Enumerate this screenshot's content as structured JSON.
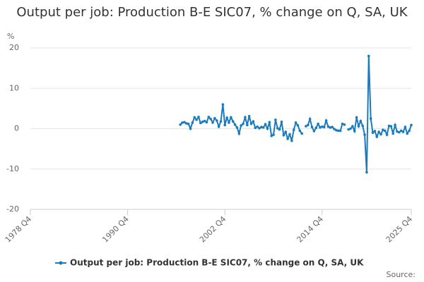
{
  "chart_data": {
    "type": "line",
    "title": "Output per job: Production B-E SIC07, % change on Q, SA, UK",
    "y_label": "%",
    "source": "Source:",
    "categories": [
      "1978 Q4",
      null,
      null,
      null,
      null,
      null,
      null,
      null,
      null,
      null,
      null,
      null,
      null,
      null,
      null,
      null,
      null,
      null,
      null,
      null,
      null,
      null,
      null,
      null,
      null,
      null,
      null,
      null,
      null,
      null,
      null,
      null,
      null,
      null,
      null,
      null,
      null,
      null,
      null,
      null,
      null,
      null,
      null,
      null,
      null,
      null,
      null,
      null,
      "1990 Q4",
      null,
      null,
      null,
      null,
      null,
      null,
      null,
      null,
      null,
      null,
      null,
      null,
      null,
      null,
      null,
      null,
      null,
      null,
      null,
      null,
      null,
      null,
      null,
      null,
      null,
      null,
      null,
      null,
      null,
      null,
      null,
      null,
      null,
      null,
      null,
      null,
      null,
      null,
      null,
      null,
      null,
      null,
      null,
      null,
      null,
      null,
      null,
      "2002 Q4",
      null,
      null,
      null,
      null,
      null,
      null,
      null,
      null,
      null,
      null,
      null,
      null,
      null,
      null,
      null,
      null,
      null,
      null,
      null,
      null,
      null,
      null,
      null,
      null,
      null,
      null,
      null,
      null,
      null,
      null,
      null,
      null,
      null,
      null,
      null,
      null,
      null,
      null,
      null,
      null,
      null,
      null,
      null,
      null,
      null,
      null,
      null,
      "2014 Q4",
      null,
      null,
      null,
      null,
      null,
      null,
      null,
      null,
      null,
      null,
      null,
      null,
      null,
      null,
      null,
      null,
      null,
      null,
      null,
      null,
      null,
      null,
      null,
      null,
      null,
      null,
      null,
      null,
      null,
      null,
      null,
      null,
      null,
      null,
      null,
      null,
      null,
      null,
      null,
      null,
      null,
      null,
      null,
      "2025 Q4"
    ],
    "series": [
      {
        "name": "Output per job: Production B-E SIC07, % change on Q, SA, UK",
        "color": "#1b7bbd",
        "values": [
          null,
          null,
          null,
          null,
          null,
          null,
          null,
          null,
          null,
          null,
          null,
          null,
          null,
          null,
          null,
          null,
          null,
          null,
          null,
          null,
          null,
          null,
          null,
          null,
          null,
          null,
          null,
          null,
          null,
          null,
          null,
          null,
          null,
          null,
          null,
          null,
          null,
          null,
          null,
          null,
          null,
          null,
          null,
          null,
          null,
          null,
          null,
          null,
          null,
          null,
          null,
          null,
          null,
          null,
          null,
          null,
          null,
          null,
          null,
          null,
          null,
          null,
          null,
          null,
          null,
          null,
          null,
          null,
          null,
          null,
          null,
          null,
          null,
          null,
          1.0,
          1.5,
          1.6,
          1.3,
          1.2,
          0.0,
          1.5,
          2.8,
          2.2,
          2.9,
          1.4,
          1.7,
          1.9,
          1.6,
          2.9,
          2.4,
          1.5,
          2.6,
          2.0,
          0.5,
          1.8,
          6.0,
          0.9,
          2.7,
          1.5,
          2.8,
          1.8,
          1.0,
          0.3,
          -1.2,
          0.8,
          1.2,
          2.8,
          0.9,
          3.1,
          1.2,
          1.8,
          0.2,
          0.5,
          0.1,
          0.4,
          0.3,
          1.1,
          0.0,
          1.6,
          -1.8,
          -1.5,
          2.2,
          0.1,
          -0.2,
          1.7,
          -1.6,
          -0.8,
          -2.5,
          -1.4,
          -3.0,
          -0.3,
          1.5,
          0.8,
          -0.5,
          -1.2,
          null,
          0.6,
          0.9,
          2.4,
          0.4,
          -0.6,
          0.2,
          1.2,
          0.3,
          0.5,
          0.4,
          2.0,
          0.5,
          0.3,
          0.4,
          -0.1,
          -0.4,
          -0.5,
          -0.5,
          1.2,
          1.0,
          null,
          -0.2,
          0.0,
          0.6,
          -0.6,
          2.8,
          0.6,
          1.9,
          0.7,
          -1.5,
          -10.8,
          18.0,
          2.5,
          -1.0,
          -0.6,
          -2.0,
          -0.8,
          -1.4,
          -0.3,
          -0.5,
          -1.5,
          0.7,
          0.6,
          -1.2,
          0.9,
          -0.7,
          -0.9,
          -0.5,
          -0.8,
          0.4,
          -1.2,
          -0.5,
          0.9
        ]
      }
    ],
    "ylim": [
      -20,
      20
    ],
    "yticks": [
      -20,
      -10,
      0,
      10,
      20
    ],
    "grid": true
  }
}
